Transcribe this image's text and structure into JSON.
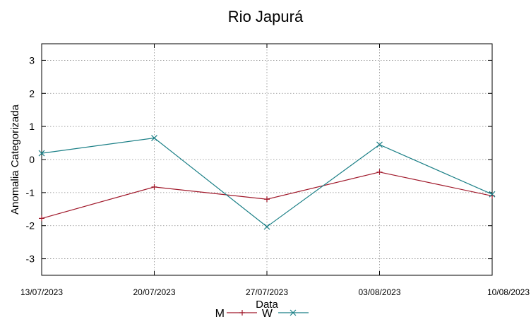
{
  "chart_data": {
    "type": "line",
    "title": "Rio Japurá",
    "xlabel": "Data",
    "ylabel": "Anomalia Categorizada",
    "categories": [
      "13/07/2023",
      "20/07/2023",
      "27/07/2023",
      "03/08/2023",
      "10/08/2023"
    ],
    "ylim": [
      -3.5,
      3.5
    ],
    "yticks": [
      -3,
      -2,
      -1,
      0,
      1,
      2,
      3
    ],
    "grid": true,
    "legend_position": "bottom",
    "series": [
      {
        "name": "M",
        "color": "#a0182a",
        "marker": "plus",
        "values": [
          -1.78,
          -0.83,
          -1.2,
          -0.38,
          -1.1
        ]
      },
      {
        "name": "W",
        "color": "#1a7f86",
        "marker": "x",
        "values": [
          0.19,
          0.65,
          -2.03,
          0.45,
          -1.05
        ]
      }
    ]
  }
}
